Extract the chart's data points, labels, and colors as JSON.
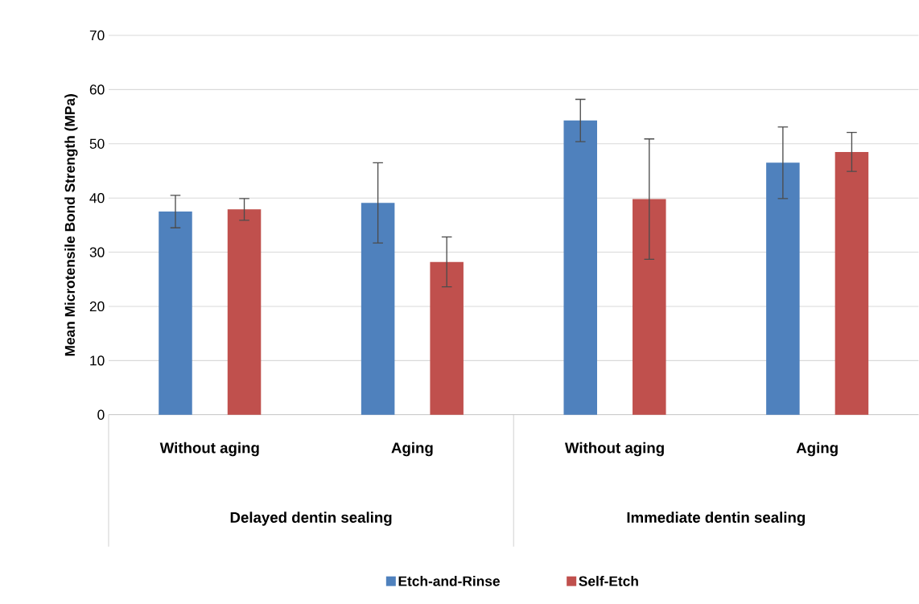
{
  "chart_data": {
    "type": "bar",
    "ylabel": "Mean Microtensile  Bond Strength (MPa)",
    "categories": [
      "Without aging",
      "Aging",
      "Without aging",
      "Aging"
    ],
    "series": [
      {
        "name": "Etch-and-Rinse",
        "color": "#4f81bd",
        "values": [
          37.5,
          39.1,
          54.3,
          46.5
        ],
        "errors": [
          3.0,
          7.4,
          3.9,
          6.6
        ]
      },
      {
        "name": "Self-Etch",
        "color": "#c0504d",
        "values": [
          37.9,
          28.2,
          39.8,
          48.5
        ],
        "errors": [
          2.0,
          4.6,
          11.1,
          3.6
        ]
      }
    ],
    "annotations": [
      "Delayed dentin sealing",
      "Immediate dentin sealing"
    ],
    "ylim": [
      0,
      70
    ],
    "yticks": [
      0,
      10,
      20,
      30,
      40,
      50,
      60,
      70
    ],
    "grid": "y",
    "legend": "bottom"
  }
}
